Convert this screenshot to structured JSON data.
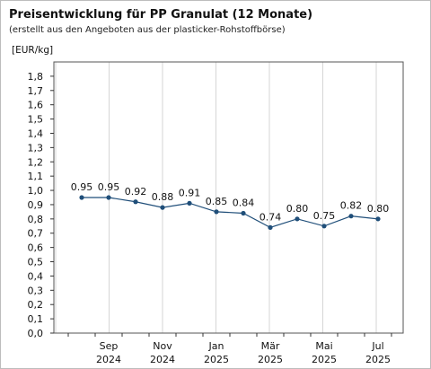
{
  "chart_data": {
    "type": "line",
    "title": "Preisentwicklung für PP Granulat (12 Monate)",
    "subtitle": "(erstellt aus den Angeboten aus der plasticker-Rohstoffbörse)",
    "ylabel": "[EUR/kg]",
    "xlabel": "",
    "ylim": [
      0,
      1.9
    ],
    "y_ticks": [
      "0,0",
      "0,1",
      "0,2",
      "0,3",
      "0,4",
      "0,5",
      "0,6",
      "0,7",
      "0,8",
      "0,9",
      "1,0",
      "1,1",
      "1,2",
      "1,3",
      "1,4",
      "1,5",
      "1,6",
      "1,7",
      "1,8"
    ],
    "x_tick_labels": [
      {
        "month": "Sep",
        "year": "2024"
      },
      {
        "month": "Nov",
        "year": "2024"
      },
      {
        "month": "Jan",
        "year": "2025"
      },
      {
        "month": "Mär",
        "year": "2025"
      },
      {
        "month": "Mai",
        "year": "2025"
      },
      {
        "month": "Jul",
        "year": "2025"
      }
    ],
    "grid": "vertical",
    "series": [
      {
        "values": [
          0.95,
          0.95,
          0.92,
          0.88,
          0.91,
          0.85,
          0.84,
          0.74,
          0.8,
          0.75,
          0.82,
          0.8
        ],
        "labels": [
          "0.95",
          "0.95",
          "0.92",
          "0.88",
          "0.91",
          "0.85",
          "0.84",
          "0.74",
          "0.80",
          "0.75",
          "0.82",
          "0.80"
        ],
        "color": "#1f4e79"
      }
    ]
  }
}
